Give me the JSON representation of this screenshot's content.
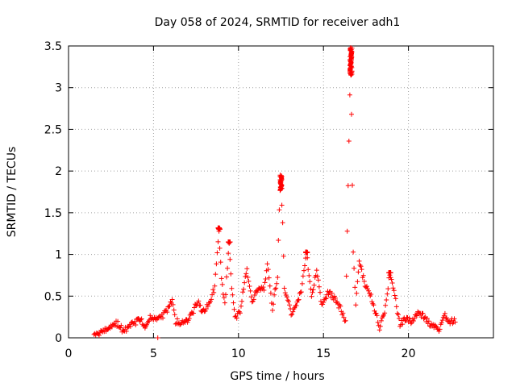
{
  "chart_data": {
    "type": "scatter",
    "title": "Day 058 of 2024, SRMTID for receiver adh1",
    "xlabel": "GPS time / hours",
    "ylabel": "SRMTID / TECUs",
    "xlim": [
      0,
      25
    ],
    "ylim": [
      0,
      3.5
    ],
    "x_ticks": [
      0,
      5,
      10,
      15,
      20
    ],
    "y_ticks": [
      0,
      0.5,
      1,
      1.5,
      2,
      2.5,
      3,
      3.5
    ],
    "x_tick_labels": [
      "0",
      "5",
      "10",
      "15",
      "20"
    ],
    "y_tick_labels": [
      "0",
      "0.5",
      "1",
      "1.5",
      "2",
      "2.5",
      "3",
      "3.5"
    ],
    "grid": true,
    "marker": "+",
    "series_color": "#ff0000",
    "series": [
      {
        "name": "SRMTID",
        "profile": [
          [
            1.5,
            0.02
          ],
          [
            1.9,
            0.07
          ],
          [
            2.3,
            0.12
          ],
          [
            2.7,
            0.18
          ],
          [
            3.0,
            0.16
          ],
          [
            3.2,
            0.08
          ],
          [
            3.5,
            0.12
          ],
          [
            3.9,
            0.18
          ],
          [
            4.2,
            0.22
          ],
          [
            4.5,
            0.15
          ],
          [
            4.8,
            0.26
          ],
          [
            5.1,
            0.22
          ],
          [
            5.4,
            0.24
          ],
          [
            5.7,
            0.3
          ],
          [
            6.0,
            0.4
          ],
          [
            6.1,
            0.45
          ],
          [
            6.3,
            0.2
          ],
          [
            6.7,
            0.18
          ],
          [
            7.0,
            0.22
          ],
          [
            7.3,
            0.3
          ],
          [
            7.6,
            0.45
          ],
          [
            7.9,
            0.3
          ],
          [
            8.2,
            0.38
          ],
          [
            8.6,
            0.6
          ],
          [
            8.75,
            1.0
          ],
          [
            8.85,
            1.3
          ],
          [
            9.0,
            0.7
          ],
          [
            9.2,
            0.4
          ],
          [
            9.45,
            1.15
          ],
          [
            9.6,
            0.6
          ],
          [
            9.8,
            0.25
          ],
          [
            10.1,
            0.3
          ],
          [
            10.3,
            0.6
          ],
          [
            10.5,
            0.8
          ],
          [
            10.8,
            0.45
          ],
          [
            11.1,
            0.55
          ],
          [
            11.5,
            0.6
          ],
          [
            11.7,
            0.88
          ],
          [
            12.0,
            0.35
          ],
          [
            12.3,
            0.75
          ],
          [
            12.45,
            1.95
          ],
          [
            12.6,
            1.4
          ],
          [
            12.7,
            0.6
          ],
          [
            13.1,
            0.3
          ],
          [
            13.4,
            0.4
          ],
          [
            13.7,
            0.55
          ],
          [
            14.0,
            1.02
          ],
          [
            14.3,
            0.5
          ],
          [
            14.6,
            0.8
          ],
          [
            14.9,
            0.4
          ],
          [
            15.3,
            0.55
          ],
          [
            15.7,
            0.45
          ],
          [
            16.0,
            0.35
          ],
          [
            16.3,
            0.2
          ],
          [
            16.6,
            3.48
          ],
          [
            16.75,
            1.0
          ],
          [
            16.9,
            0.4
          ],
          [
            17.1,
            0.9
          ],
          [
            17.5,
            0.6
          ],
          [
            17.8,
            0.5
          ],
          [
            18.0,
            0.35
          ],
          [
            18.3,
            0.12
          ],
          [
            18.6,
            0.3
          ],
          [
            18.9,
            0.78
          ],
          [
            19.2,
            0.5
          ],
          [
            19.5,
            0.15
          ],
          [
            19.8,
            0.22
          ],
          [
            20.2,
            0.2
          ],
          [
            20.6,
            0.32
          ],
          [
            21.0,
            0.22
          ],
          [
            21.4,
            0.15
          ],
          [
            21.8,
            0.08
          ],
          [
            22.1,
            0.28
          ],
          [
            22.4,
            0.18
          ],
          [
            22.8,
            0.22
          ]
        ],
        "spikes": [
          {
            "x": 8.85,
            "peak": 1.32
          },
          {
            "x": 9.45,
            "peak": 1.15
          },
          {
            "x": 12.5,
            "peak": 1.95
          },
          {
            "x": 14.0,
            "peak": 1.03
          },
          {
            "x": 16.62,
            "peak": 3.48
          },
          {
            "x": 18.9,
            "peak": 0.78
          }
        ],
        "outliers": [
          [
            5.25,
            0.0
          ]
        ]
      }
    ]
  }
}
